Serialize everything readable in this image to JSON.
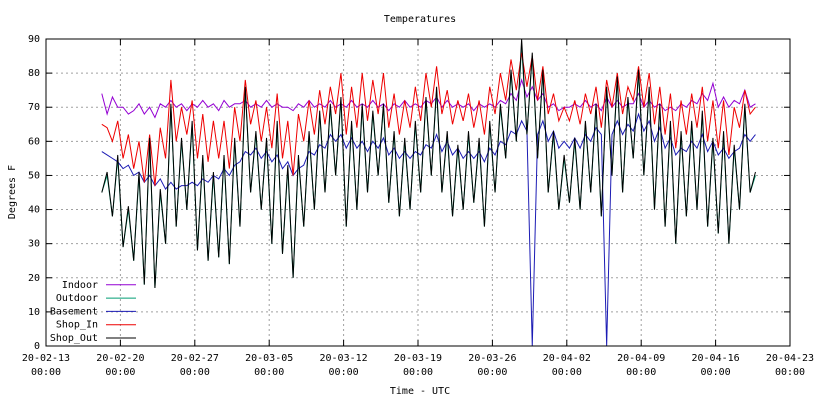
{
  "chart_data": {
    "type": "line",
    "title": "Temperatures",
    "xlabel": "Time - UTC",
    "ylabel": "Degrees F",
    "xlim": [
      "20-02-13 00:00",
      "20-04-23 00:00"
    ],
    "xticks": [
      "20-02-13 00:00",
      "20-02-20 00:00",
      "20-02-27 00:00",
      "20-03-05 00:00",
      "20-03-12 00:00",
      "20-03-19 00:00",
      "20-03-26 00:00",
      "20-04-02 00:00",
      "20-04-09 00:00",
      "20-04-16 00:00",
      "20-04-23 00:00"
    ],
    "ylim": [
      0,
      90
    ],
    "yticks": [
      0,
      10,
      20,
      30,
      40,
      50,
      60,
      70,
      80,
      90
    ],
    "grid": true,
    "legend": "lower left",
    "x": [
      "20-02-18 06:00",
      "20-02-18 18:00",
      "20-02-19 06:00",
      "20-02-19 18:00",
      "20-02-20 06:00",
      "20-02-20 18:00",
      "20-02-21 06:00",
      "20-02-21 18:00",
      "20-02-22 06:00",
      "20-02-22 18:00",
      "20-02-23 06:00",
      "20-02-23 18:00",
      "20-02-24 06:00",
      "20-02-24 18:00",
      "20-02-25 06:00",
      "20-02-25 18:00",
      "20-02-26 06:00",
      "20-02-26 18:00",
      "20-02-27 06:00",
      "20-02-27 18:00",
      "20-02-28 06:00",
      "20-02-28 18:00",
      "20-02-29 06:00",
      "20-02-29 18:00",
      "20-03-01 06:00",
      "20-03-01 18:00",
      "20-03-02 06:00",
      "20-03-02 18:00",
      "20-03-03 06:00",
      "20-03-03 18:00",
      "20-03-04 06:00",
      "20-03-04 18:00",
      "20-03-05 06:00",
      "20-03-05 18:00",
      "20-03-06 06:00",
      "20-03-06 18:00",
      "20-03-07 06:00",
      "20-03-07 18:00",
      "20-03-08 06:00",
      "20-03-08 18:00",
      "20-03-09 06:00",
      "20-03-09 18:00",
      "20-03-10 06:00",
      "20-03-10 18:00",
      "20-03-11 06:00",
      "20-03-11 18:00",
      "20-03-12 06:00",
      "20-03-12 18:00",
      "20-03-13 06:00",
      "20-03-13 18:00",
      "20-03-14 06:00",
      "20-03-14 18:00",
      "20-03-15 06:00",
      "20-03-15 18:00",
      "20-03-16 06:00",
      "20-03-16 18:00",
      "20-03-17 06:00",
      "20-03-17 18:00",
      "20-03-18 06:00",
      "20-03-18 18:00",
      "20-03-19 06:00",
      "20-03-19 18:00",
      "20-03-20 06:00",
      "20-03-20 18:00",
      "20-03-21 06:00",
      "20-03-21 18:00",
      "20-03-22 06:00",
      "20-03-22 18:00",
      "20-03-23 06:00",
      "20-03-23 18:00",
      "20-03-24 06:00",
      "20-03-24 18:00",
      "20-03-25 06:00",
      "20-03-25 18:00",
      "20-03-26 06:00",
      "20-03-26 18:00",
      "20-03-27 06:00",
      "20-03-27 18:00",
      "20-03-28 06:00",
      "20-03-28 18:00",
      "20-03-29 06:00",
      "20-03-29 18:00",
      "20-03-30 06:00",
      "20-03-30 18:00",
      "20-03-31 06:00",
      "20-03-31 18:00",
      "20-04-01 06:00",
      "20-04-01 18:00",
      "20-04-02 06:00",
      "20-04-02 18:00",
      "20-04-03 06:00",
      "20-04-03 18:00",
      "20-04-04 06:00",
      "20-04-04 18:00",
      "20-04-05 06:00",
      "20-04-05 18:00",
      "20-04-06 06:00",
      "20-04-06 18:00",
      "20-04-07 06:00",
      "20-04-07 18:00",
      "20-04-08 06:00",
      "20-04-08 18:00",
      "20-04-09 06:00",
      "20-04-09 18:00",
      "20-04-10 06:00",
      "20-04-10 18:00",
      "20-04-11 06:00",
      "20-04-11 18:00",
      "20-04-12 06:00",
      "20-04-12 18:00",
      "20-04-13 06:00",
      "20-04-13 18:00",
      "20-04-14 06:00",
      "20-04-14 18:00",
      "20-04-15 06:00",
      "20-04-15 18:00",
      "20-04-16 06:00",
      "20-04-16 18:00",
      "20-04-17 06:00",
      "20-04-17 18:00",
      "20-04-18 06:00",
      "20-04-18 18:00",
      "20-04-19 06:00",
      "20-04-19 18:00"
    ],
    "series": [
      {
        "name": "Indoor",
        "color": "#9400d3",
        "values": [
          74,
          68,
          73,
          70,
          70,
          68,
          69,
          71,
          68,
          70,
          67,
          71,
          70,
          72,
          70,
          71,
          69,
          71,
          70,
          72,
          70,
          71,
          69,
          72,
          70,
          71,
          71,
          72,
          70,
          71,
          70,
          72,
          70,
          71,
          70,
          70,
          69,
          71,
          70,
          72,
          70,
          71,
          70,
          72,
          70,
          71,
          70,
          72,
          70,
          71,
          70,
          72,
          70,
          71,
          69,
          71,
          70,
          72,
          70,
          71,
          70,
          72,
          71,
          73,
          70,
          72,
          70,
          71,
          70,
          71,
          69,
          71,
          70,
          71,
          70,
          72,
          71,
          74,
          72,
          78,
          73,
          76,
          72,
          74,
          70,
          71,
          69,
          70,
          70,
          71,
          70,
          72,
          70,
          71,
          69,
          73,
          70,
          72,
          70,
          71,
          71,
          74,
          70,
          72,
          70,
          71,
          69,
          70,
          69,
          71,
          70,
          72,
          71,
          74,
          72,
          77,
          70,
          73,
          70,
          72,
          71,
          75,
          70,
          71
        ]
      },
      {
        "name": "Outdoor",
        "color": "#009e73",
        "values": [
          45,
          50,
          38,
          55,
          29,
          40,
          25,
          50,
          18,
          60,
          17,
          45,
          30,
          70,
          35,
          60,
          40,
          65,
          28,
          55,
          25,
          50,
          26,
          55,
          24,
          60,
          35,
          75,
          45,
          62,
          40,
          60,
          30,
          65,
          27,
          52,
          20,
          55,
          35,
          62,
          40,
          68,
          45,
          70,
          50,
          72,
          35,
          65,
          40,
          70,
          45,
          68,
          50,
          70,
          42,
          62,
          38,
          60,
          40,
          65,
          45,
          72,
          50,
          75,
          45,
          62,
          38,
          58,
          40,
          62,
          42,
          60,
          35,
          65,
          45,
          70,
          55,
          80,
          60,
          88,
          62,
          85,
          55,
          80,
          45,
          62,
          40,
          55,
          42,
          60,
          40,
          65,
          45,
          70,
          38,
          75,
          50,
          78,
          45,
          72,
          55,
          80,
          50,
          75,
          40,
          70,
          35,
          65,
          30,
          62,
          38,
          65,
          40,
          68,
          35,
          60,
          33,
          62,
          30,
          58,
          40,
          70,
          45,
          50
        ]
      },
      {
        "name": "Basement",
        "color": "#1c1cb4",
        "values": [
          57,
          56,
          55,
          54,
          52,
          53,
          50,
          51,
          48,
          50,
          47,
          49,
          46,
          48,
          46,
          47,
          47,
          48,
          47,
          49,
          48,
          50,
          49,
          52,
          50,
          53,
          54,
          57,
          56,
          58,
          55,
          57,
          54,
          56,
          52,
          54,
          50,
          52,
          53,
          57,
          56,
          59,
          58,
          62,
          60,
          62,
          58,
          61,
          58,
          60,
          57,
          60,
          58,
          61,
          56,
          58,
          55,
          57,
          55,
          57,
          56,
          59,
          58,
          62,
          57,
          60,
          56,
          58,
          55,
          57,
          55,
          57,
          54,
          58,
          56,
          60,
          59,
          63,
          62,
          66,
          63,
          0,
          62,
          66,
          60,
          63,
          58,
          60,
          58,
          61,
          58,
          62,
          60,
          64,
          62,
          0,
          62,
          66,
          62,
          65,
          63,
          68,
          63,
          66,
          60,
          64,
          58,
          61,
          56,
          58,
          57,
          60,
          58,
          62,
          57,
          60,
          56,
          58,
          55,
          57,
          58,
          62,
          60,
          62
        ]
      },
      {
        "name": "Shop_In",
        "color": "#ee0000",
        "values": [
          65,
          64,
          60,
          66,
          55,
          62,
          52,
          60,
          48,
          62,
          47,
          64,
          55,
          78,
          60,
          70,
          62,
          72,
          55,
          68,
          54,
          66,
          55,
          66,
          52,
          70,
          60,
          78,
          65,
          72,
          60,
          70,
          58,
          74,
          55,
          66,
          50,
          68,
          60,
          72,
          62,
          75,
          65,
          76,
          68,
          80,
          62,
          76,
          64,
          80,
          66,
          78,
          68,
          80,
          64,
          74,
          62,
          72,
          64,
          76,
          66,
          80,
          70,
          82,
          68,
          75,
          65,
          72,
          66,
          74,
          64,
          72,
          62,
          76,
          68,
          80,
          72,
          84,
          75,
          86,
          76,
          85,
          72,
          82,
          68,
          74,
          66,
          70,
          66,
          72,
          65,
          74,
          68,
          76,
          64,
          78,
          70,
          80,
          68,
          76,
          72,
          82,
          70,
          80,
          65,
          76,
          62,
          74,
          58,
          72,
          62,
          74,
          64,
          76,
          60,
          72,
          58,
          72,
          56,
          70,
          64,
          75,
          68,
          70
        ]
      },
      {
        "name": "Shop_Out",
        "color": "#000000",
        "values": [
          45,
          51,
          38,
          56,
          29,
          41,
          25,
          51,
          18,
          61,
          17,
          46,
          30,
          71,
          35,
          61,
          40,
          66,
          28,
          56,
          25,
          51,
          26,
          56,
          24,
          61,
          35,
          76,
          45,
          63,
          40,
          61,
          30,
          66,
          27,
          53,
          20,
          56,
          35,
          63,
          40,
          69,
          45,
          71,
          50,
          73,
          35,
          66,
          40,
          71,
          45,
          69,
          50,
          71,
          42,
          63,
          38,
          61,
          40,
          66,
          45,
          73,
          50,
          76,
          45,
          63,
          38,
          59,
          40,
          63,
          42,
          61,
          35,
          66,
          45,
          71,
          55,
          81,
          60,
          90,
          62,
          86,
          55,
          81,
          45,
          63,
          40,
          56,
          42,
          61,
          40,
          66,
          45,
          71,
          38,
          76,
          50,
          79,
          45,
          73,
          55,
          81,
          50,
          76,
          40,
          71,
          35,
          66,
          30,
          63,
          38,
          66,
          40,
          69,
          35,
          61,
          33,
          63,
          30,
          59,
          40,
          71,
          45,
          51
        ]
      }
    ]
  }
}
